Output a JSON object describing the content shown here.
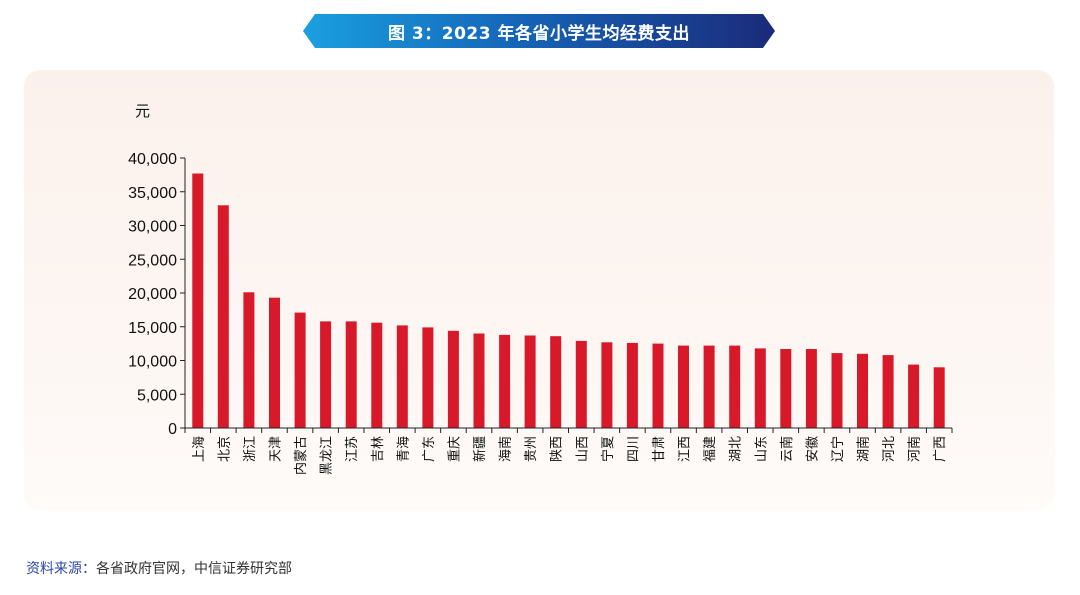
{
  "title": "图 3：2023 年各省小学生均经费支出",
  "source": {
    "label": "资料来源：",
    "text": "各省政府官网，中信证券研究部"
  },
  "colors": {
    "bar": "#d7192a",
    "axis": "#222222"
  },
  "chart_data": {
    "type": "bar",
    "title": "图 3：2023 年各省小学生均经费支出",
    "ylabel": "元",
    "xlabel": "",
    "ylim": [
      0,
      40000
    ],
    "yticks": [
      0,
      5000,
      10000,
      15000,
      20000,
      25000,
      30000,
      35000,
      40000
    ],
    "ytick_labels": [
      "0",
      "5,000",
      "10,000",
      "15,000",
      "20,000",
      "25,000",
      "30,000",
      "35,000",
      "40,000"
    ],
    "grid": false,
    "categories": [
      "上海",
      "北京",
      "浙江",
      "天津",
      "内蒙古",
      "黑龙江",
      "江苏",
      "吉林",
      "青海",
      "广东",
      "重庆",
      "新疆",
      "海南",
      "贵州",
      "陕西",
      "山西",
      "宁夏",
      "四川",
      "甘肃",
      "江西",
      "福建",
      "湖北",
      "山东",
      "云南",
      "安徽",
      "辽宁",
      "湖南",
      "河北",
      "河南",
      "广西"
    ],
    "values": [
      37700,
      33000,
      20100,
      19300,
      17100,
      15800,
      15800,
      15600,
      15200,
      14900,
      14400,
      14000,
      13800,
      13700,
      13600,
      12900,
      12700,
      12600,
      12500,
      12200,
      12200,
      12200,
      11800,
      11700,
      11700,
      11100,
      11000,
      10800,
      9400,
      9000
    ]
  }
}
